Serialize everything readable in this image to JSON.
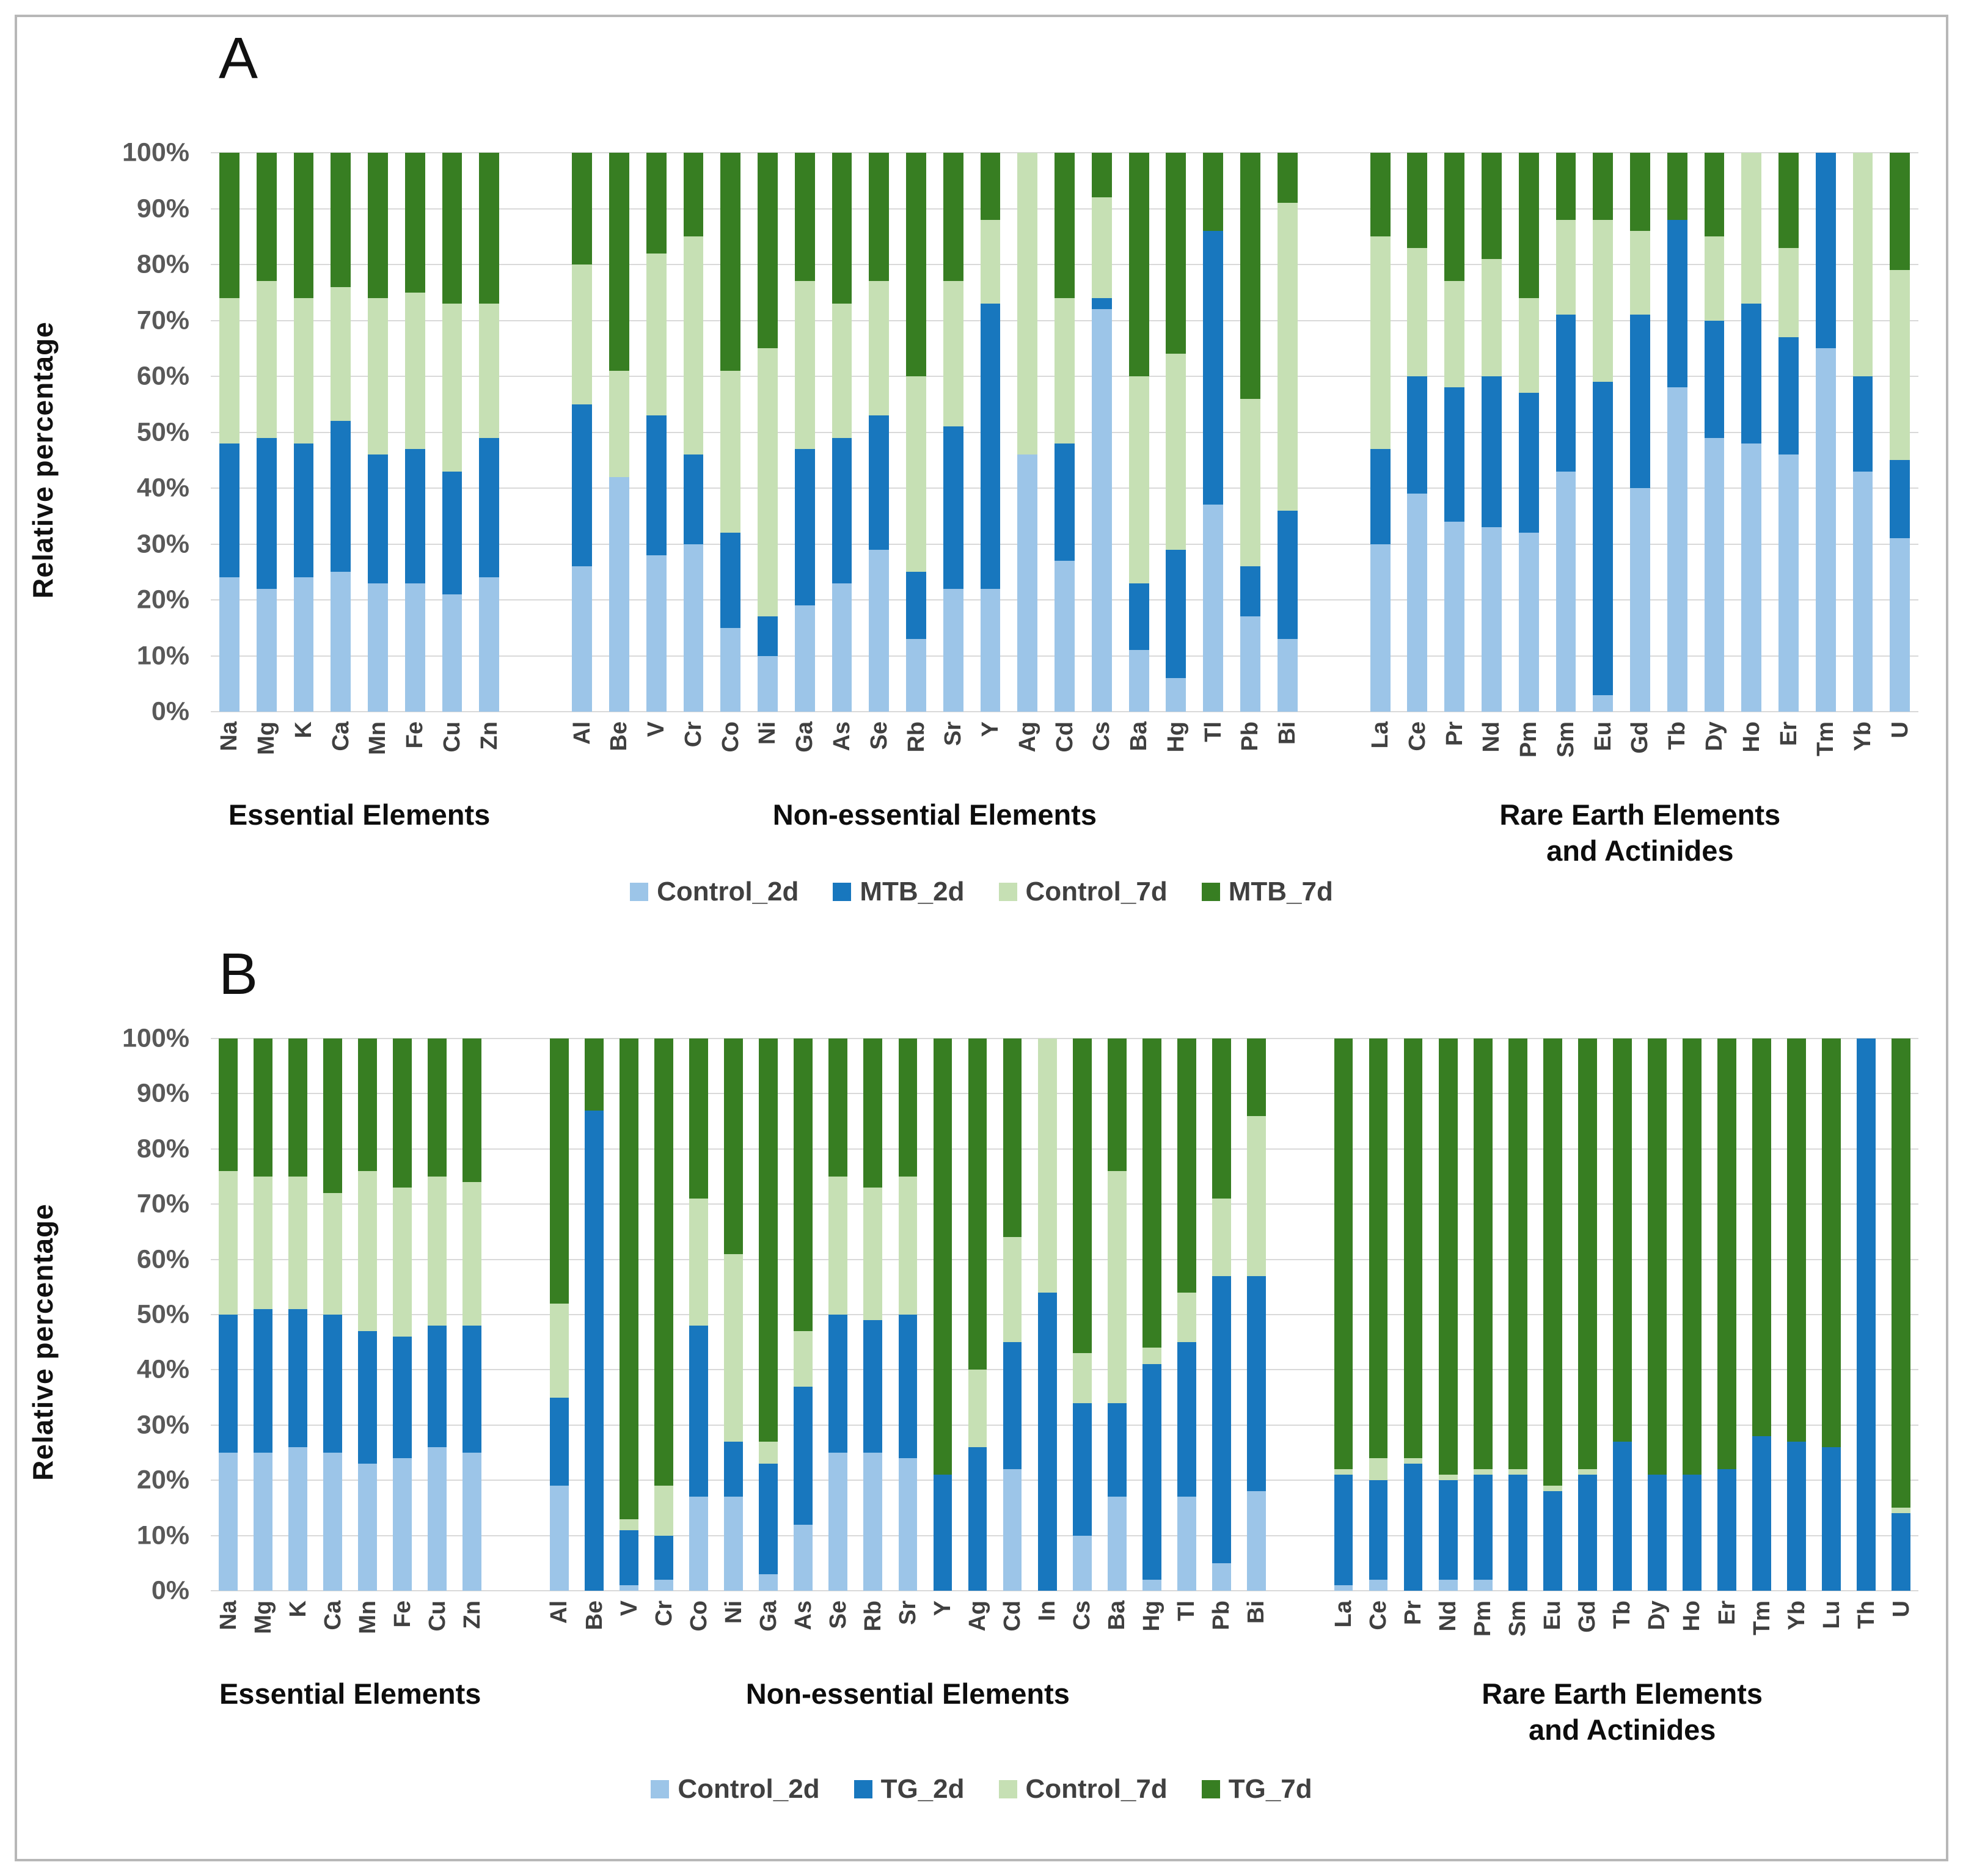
{
  "figure": {
    "y_axis_title": "Relative percentage",
    "y_ticks": [
      "0%",
      "10%",
      "20%",
      "30%",
      "40%",
      "50%",
      "60%",
      "70%",
      "80%",
      "90%",
      "100%"
    ],
    "colors": {
      "background": "#ffffff",
      "frame_border": "#b7b7b7",
      "gridline": "#d9d9d9",
      "tick_text": "#595959",
      "category_text": "#404040",
      "caption_text": "#0d0d0d",
      "series_colors": {
        "Control_2d": "#9cc5e8",
        "MTB_2d": "#1877be",
        "TG_2d": "#1877be",
        "Control_7d": "#c6e0b4",
        "MTB_7d": "#377e22",
        "TG_7d": "#377e22"
      }
    }
  },
  "chart_data": [
    {
      "panel": "A",
      "type": "bar",
      "stacked": true,
      "percent_stacked": true,
      "ylabel": "Relative percentage",
      "ylim": [
        0,
        100
      ],
      "ytick_values": [
        0,
        10,
        20,
        30,
        40,
        50,
        60,
        70,
        80,
        90,
        100
      ],
      "grid": true,
      "legend_position": "bottom",
      "legend": [
        "Control_2d",
        "MTB_2d",
        "Control_7d",
        "MTB_7d"
      ],
      "groups": [
        {
          "caption_lines": [
            "Essential Elements"
          ],
          "categories": [
            "Na",
            "Mg",
            "K",
            "Ca",
            "Mn",
            "Fe",
            "Cu",
            "Zn"
          ],
          "series": [
            {
              "name": "Control_2d",
              "values": [
                24,
                22,
                24,
                25,
                23,
                23,
                21,
                24
              ]
            },
            {
              "name": "MTB_2d",
              "values": [
                24,
                27,
                24,
                27,
                23,
                24,
                22,
                25
              ]
            },
            {
              "name": "Control_7d",
              "values": [
                26,
                28,
                26,
                24,
                28,
                28,
                30,
                24
              ]
            },
            {
              "name": "MTB_7d",
              "values": [
                26,
                23,
                26,
                24,
                26,
                25,
                27,
                27
              ]
            }
          ]
        },
        {
          "caption_lines": [
            "Non-essential Elements"
          ],
          "categories": [
            "Al",
            "Be",
            "V",
            "Cr",
            "Co",
            "Ni",
            "Ga",
            "As",
            "Se",
            "Rb",
            "Sr",
            "Y",
            "Ag",
            "Cd",
            "Cs",
            "Ba",
            "Hg",
            "Tl",
            "Pb",
            "Bi"
          ],
          "series": [
            {
              "name": "Control_2d",
              "values": [
                26,
                42,
                28,
                30,
                15,
                10,
                19,
                23,
                29,
                13,
                22,
                22,
                46,
                27,
                72,
                11,
                6,
                37,
                17,
                13
              ]
            },
            {
              "name": "MTB_2d",
              "values": [
                29,
                0,
                25,
                16,
                17,
                7,
                28,
                26,
                24,
                12,
                29,
                51,
                0,
                21,
                2,
                12,
                23,
                49,
                9,
                23
              ]
            },
            {
              "name": "Control_7d",
              "values": [
                25,
                19,
                29,
                39,
                29,
                48,
                30,
                24,
                24,
                35,
                26,
                15,
                54,
                26,
                18,
                37,
                35,
                0,
                30,
                55
              ]
            },
            {
              "name": "MTB_7d",
              "values": [
                20,
                39,
                18,
                15,
                39,
                35,
                23,
                27,
                23,
                40,
                23,
                12,
                0,
                26,
                8,
                40,
                36,
                14,
                44,
                9
              ]
            }
          ]
        },
        {
          "caption_lines": [
            "Rare Earth Elements",
            "and Actinides"
          ],
          "categories": [
            "La",
            "Ce",
            "Pr",
            "Nd",
            "Pm",
            "Sm",
            "Eu",
            "Gd",
            "Tb",
            "Dy",
            "Ho",
            "Er",
            "Tm",
            "Yb",
            "U"
          ],
          "series": [
            {
              "name": "Control_2d",
              "values": [
                30,
                39,
                34,
                33,
                32,
                43,
                3,
                40,
                58,
                49,
                48,
                46,
                65,
                43,
                31
              ]
            },
            {
              "name": "MTB_2d",
              "values": [
                17,
                21,
                24,
                27,
                25,
                28,
                56,
                31,
                30,
                21,
                25,
                21,
                35,
                17,
                14
              ]
            },
            {
              "name": "Control_7d",
              "values": [
                38,
                23,
                19,
                21,
                17,
                17,
                29,
                15,
                0,
                15,
                27,
                16,
                0,
                40,
                34
              ]
            },
            {
              "name": "MTB_7d",
              "values": [
                15,
                17,
                23,
                19,
                26,
                12,
                12,
                14,
                12,
                15,
                0,
                17,
                0,
                0,
                21
              ]
            }
          ]
        }
      ]
    },
    {
      "panel": "B",
      "type": "bar",
      "stacked": true,
      "percent_stacked": true,
      "ylabel": "Relative percentage",
      "ylim": [
        0,
        100
      ],
      "ytick_values": [
        0,
        10,
        20,
        30,
        40,
        50,
        60,
        70,
        80,
        90,
        100
      ],
      "grid": true,
      "legend_position": "bottom",
      "legend": [
        "Control_2d",
        "TG_2d",
        "Control_7d",
        "TG_7d"
      ],
      "groups": [
        {
          "caption_lines": [
            "Essential Elements"
          ],
          "categories": [
            "Na",
            "Mg",
            "K",
            "Ca",
            "Mn",
            "Fe",
            "Cu",
            "Zn"
          ],
          "series": [
            {
              "name": "Control_2d",
              "values": [
                25,
                25,
                26,
                25,
                23,
                24,
                26,
                25
              ]
            },
            {
              "name": "TG_2d",
              "values": [
                25,
                26,
                25,
                25,
                24,
                22,
                22,
                23
              ]
            },
            {
              "name": "Control_7d",
              "values": [
                26,
                24,
                24,
                22,
                29,
                27,
                27,
                26
              ]
            },
            {
              "name": "TG_7d",
              "values": [
                24,
                25,
                25,
                28,
                24,
                27,
                25,
                26
              ]
            }
          ]
        },
        {
          "caption_lines": [
            "Non-essential Elements"
          ],
          "categories": [
            "Al",
            "Be",
            "V",
            "Cr",
            "Co",
            "Ni",
            "Ga",
            "As",
            "Se",
            "Rb",
            "Sr",
            "Y",
            "Ag",
            "Cd",
            "In",
            "Cs",
            "Ba",
            "Hg",
            "Tl",
            "Pb",
            "Bi"
          ],
          "series": [
            {
              "name": "Control_2d",
              "values": [
                19,
                0,
                1,
                2,
                17,
                17,
                3,
                12,
                25,
                25,
                24,
                0,
                0,
                22,
                0,
                10,
                17,
                2,
                17,
                5,
                18
              ]
            },
            {
              "name": "TG_2d",
              "values": [
                16,
                87,
                10,
                8,
                31,
                10,
                20,
                25,
                25,
                24,
                26,
                21,
                26,
                23,
                54,
                24,
                17,
                39,
                28,
                52,
                39
              ]
            },
            {
              "name": "Control_7d",
              "values": [
                17,
                0,
                2,
                9,
                23,
                34,
                4,
                10,
                25,
                24,
                25,
                0,
                14,
                19,
                46,
                9,
                42,
                3,
                9,
                14,
                29
              ]
            },
            {
              "name": "TG_7d",
              "values": [
                48,
                13,
                87,
                81,
                29,
                39,
                73,
                53,
                25,
                27,
                25,
                79,
                60,
                36,
                0,
                57,
                24,
                56,
                46,
                29,
                14
              ]
            }
          ]
        },
        {
          "caption_lines": [
            "Rare Earth Elements",
            "and Actinides"
          ],
          "categories": [
            "La",
            "Ce",
            "Pr",
            "Nd",
            "Pm",
            "Sm",
            "Eu",
            "Gd",
            "Tb",
            "Dy",
            "Ho",
            "Er",
            "Tm",
            "Yb",
            "Lu",
            "Th",
            "U"
          ],
          "series": [
            {
              "name": "Control_2d",
              "values": [
                1,
                2,
                0,
                2,
                2,
                0,
                0,
                0,
                0,
                0,
                0,
                0,
                0,
                0,
                0,
                0,
                0
              ]
            },
            {
              "name": "TG_2d",
              "values": [
                20,
                18,
                23,
                18,
                19,
                21,
                18,
                21,
                27,
                21,
                21,
                22,
                28,
                27,
                26,
                100,
                14
              ]
            },
            {
              "name": "Control_7d",
              "values": [
                1,
                4,
                1,
                1,
                1,
                1,
                1,
                1,
                0,
                0,
                0,
                0,
                0,
                0,
                0,
                0,
                1
              ]
            },
            {
              "name": "TG_7d",
              "values": [
                78,
                76,
                76,
                79,
                78,
                78,
                81,
                78,
                73,
                79,
                79,
                78,
                72,
                73,
                74,
                0,
                85
              ]
            }
          ]
        }
      ]
    }
  ]
}
